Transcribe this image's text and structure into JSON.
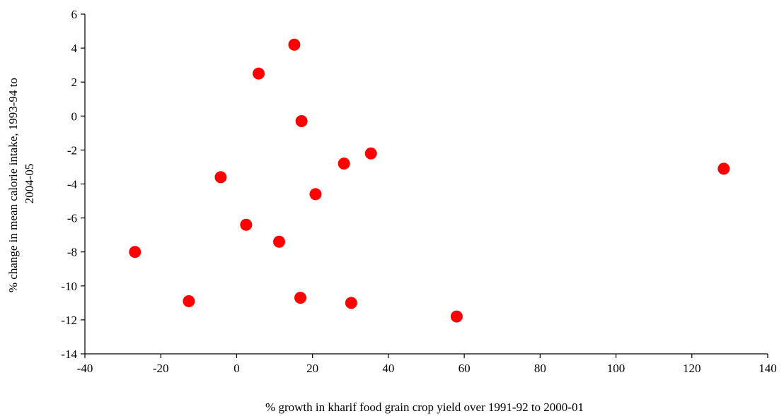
{
  "chart_data": {
    "type": "scatter",
    "xlabel": "% growth in kharif food grain crop yield over 1991-92 to 2000-01",
    "ylabel_lines": [
      "% change in mean calorie intake, 1993-94 to",
      "2004-05"
    ],
    "xlim": [
      -40,
      140
    ],
    "ylim": [
      -14,
      6
    ],
    "x_ticks": [
      -40,
      -20,
      0,
      20,
      40,
      60,
      80,
      100,
      120,
      140
    ],
    "y_ticks": [
      6,
      4,
      2,
      0,
      -2,
      -4,
      -6,
      -8,
      -10,
      -12,
      -14
    ],
    "grid": false,
    "legend": "none",
    "marker_color": "#FF0000",
    "points": [
      {
        "x": 15.2,
        "y": 4.2
      },
      {
        "x": 5.8,
        "y": 2.5
      },
      {
        "x": 17.1,
        "y": -0.3
      },
      {
        "x": 35.4,
        "y": -2.2
      },
      {
        "x": 28.3,
        "y": -2.8
      },
      {
        "x": 128.4,
        "y": -3.1
      },
      {
        "x": -4.2,
        "y": -3.6
      },
      {
        "x": 20.8,
        "y": -4.6
      },
      {
        "x": 2.5,
        "y": -6.4
      },
      {
        "x": 11.2,
        "y": -7.4
      },
      {
        "x": -26.8,
        "y": -8.0
      },
      {
        "x": -12.6,
        "y": -10.9
      },
      {
        "x": 16.8,
        "y": -10.7
      },
      {
        "x": 30.2,
        "y": -11.0
      },
      {
        "x": 58.0,
        "y": -11.8
      }
    ]
  }
}
